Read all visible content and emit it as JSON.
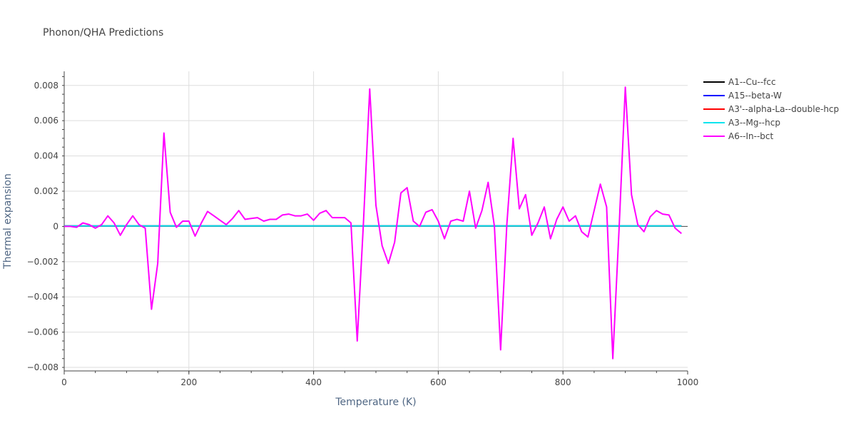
{
  "chart_data": {
    "type": "line",
    "title": "Phonon/QHA Predictions",
    "xlabel": "Temperature (K)",
    "ylabel": "Thermal expansion",
    "xlim": [
      0,
      1000
    ],
    "ylim": [
      -0.0082,
      0.0088
    ],
    "xticks": [
      0,
      200,
      400,
      600,
      800,
      1000
    ],
    "xtick_labels": [
      "0",
      "200",
      "400",
      "600",
      "800",
      "1000"
    ],
    "yticks": [
      -0.008,
      -0.006,
      -0.004,
      -0.002,
      0,
      0.002,
      0.004,
      0.006,
      0.008
    ],
    "ytick_labels": [
      "−0.008",
      "−0.006",
      "−0.004",
      "−0.002",
      "0",
      "0.002",
      "0.004",
      "0.006",
      "0.008"
    ],
    "grid": true,
    "legend_position": "top-right",
    "series": [
      {
        "name": "A1--Cu--fcc",
        "color": "#000000",
        "x": [
          0,
          990
        ],
        "y": [
          2e-05,
          2e-05
        ]
      },
      {
        "name": "A15--beta-W",
        "color": "#0000ff",
        "x": [
          0,
          990
        ],
        "y": [
          2e-05,
          2e-05
        ]
      },
      {
        "name": "A3'--alpha-La--double-hcp",
        "color": "#ff0000",
        "x": [
          0,
          990
        ],
        "y": [
          2e-05,
          2e-05
        ]
      },
      {
        "name": "A3--Mg--hcp",
        "color": "#00e5ee",
        "x": [
          0,
          990
        ],
        "y": [
          3e-05,
          3e-05
        ]
      },
      {
        "name": "A6--In--bct",
        "color": "#ff00ff",
        "x": [
          0,
          10,
          20,
          30,
          40,
          50,
          60,
          70,
          80,
          90,
          100,
          110,
          120,
          130,
          140,
          150,
          160,
          170,
          180,
          190,
          200,
          210,
          220,
          230,
          240,
          250,
          260,
          270,
          280,
          290,
          300,
          310,
          320,
          330,
          340,
          350,
          360,
          370,
          380,
          390,
          400,
          410,
          420,
          430,
          440,
          450,
          460,
          470,
          480,
          490,
          500,
          510,
          520,
          530,
          540,
          550,
          560,
          570,
          580,
          590,
          600,
          610,
          620,
          630,
          640,
          650,
          660,
          670,
          680,
          690,
          700,
          710,
          720,
          730,
          740,
          750,
          760,
          770,
          780,
          790,
          800,
          810,
          820,
          830,
          840,
          850,
          860,
          870,
          880,
          890,
          900,
          910,
          920,
          930,
          940,
          950,
          960,
          970,
          980,
          990
        ],
        "y": [
          0.0,
          0.0,
          -5e-05,
          0.0002,
          0.0001,
          -0.0001,
          0.0001,
          0.0006,
          0.0002,
          -0.0005,
          0.0001,
          0.0006,
          0.0001,
          -0.0001,
          -0.0047,
          -0.0021,
          0.0053,
          0.0008,
          -5e-05,
          0.0003,
          0.0003,
          -0.00055,
          0.0002,
          0.00085,
          0.0006,
          0.00035,
          0.0001,
          0.00045,
          0.0009,
          0.0004,
          0.00045,
          0.0005,
          0.0003,
          0.0004,
          0.0004,
          0.00065,
          0.0007,
          0.0006,
          0.0006,
          0.0007,
          0.00035,
          0.00075,
          0.0009,
          0.0005,
          0.0005,
          0.0005,
          0.0002,
          -0.0065,
          0.0002,
          0.0078,
          0.0012,
          -0.0011,
          -0.0021,
          -0.0009,
          0.0019,
          0.0022,
          0.0003,
          0.0,
          0.0008,
          0.00095,
          0.0003,
          -0.0007,
          0.0003,
          0.0004,
          0.0003,
          0.002,
          -0.0001,
          0.0009,
          0.0025,
          0.0,
          -0.007,
          0.0001,
          0.005,
          0.001,
          0.0018,
          -0.0005,
          0.0002,
          0.0011,
          -0.0007,
          0.0004,
          0.0011,
          0.0003,
          0.0006,
          -0.0003,
          -0.0006,
          0.0009,
          0.0024,
          0.0011,
          -0.0075,
          -0.0001,
          0.0079,
          0.0018,
          0.0001,
          -0.0003,
          0.00055,
          0.0009,
          0.0007,
          0.00065,
          -0.0001,
          -0.0004
        ]
      }
    ]
  }
}
